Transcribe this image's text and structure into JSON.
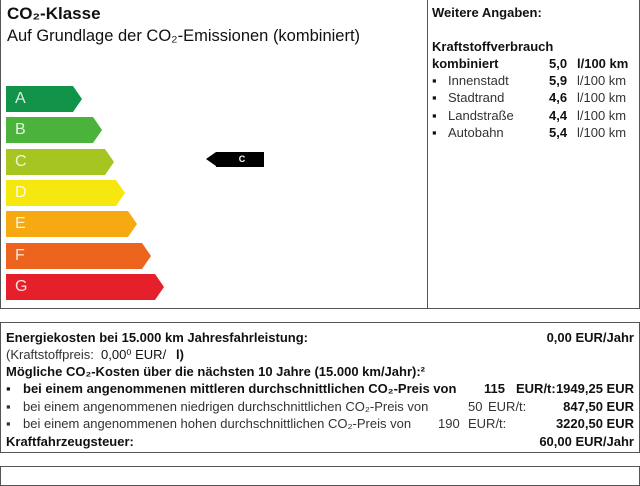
{
  "co2": {
    "title": "CO₂-Klasse",
    "subtitle": "Auf Grundlage der CO₂-Emissionen (kombiniert)",
    "classes": [
      {
        "label": "A",
        "color": "#12934a"
      },
      {
        "label": "B",
        "color": "#4bb23c"
      },
      {
        "label": "C",
        "color": "#a6c521"
      },
      {
        "label": "D",
        "color": "#f6e80f"
      },
      {
        "label": "E",
        "color": "#f6a911"
      },
      {
        "label": "F",
        "color": "#ec631d"
      },
      {
        "label": "G",
        "color": "#e5202a"
      }
    ],
    "current_class": "C"
  },
  "info": {
    "title": "Weitere Angaben:",
    "consumption_title": "Kraftstoffverbrauch",
    "combined": {
      "label": "kombiniert",
      "value": "5,0",
      "unit": "l/100 km"
    },
    "items": [
      {
        "label": "Innenstadt",
        "value": "5,9",
        "unit": "l/100 km"
      },
      {
        "label": "Stadtrand",
        "value": "4,6",
        "unit": "l/100 km"
      },
      {
        "label": "Landstraße",
        "value": "4,4",
        "unit": "l/100 km"
      },
      {
        "label": "Autobahn",
        "value": "5,4",
        "unit": "l/100 km"
      }
    ]
  },
  "costs": {
    "energy_label": "Energiekosten bei 15.000 km Jahresfahrleistung:",
    "energy_value": "0,00 EUR/Jahr",
    "fuel_price_label": "(Kraftstoffpreis:",
    "fuel_price_value": "0,00⁰ EUR/",
    "fuel_price_unit": "l)",
    "co2_costs_label": "Mögliche CO₂-Kosten über die nächsten 10 Jahre (15.000 km/Jahr):²",
    "scenarios": [
      {
        "label": "bei einem angenommenen mittleren durchschnittlichen CO₂-Preis von",
        "price": "115",
        "unit": "EUR/t:",
        "value": "1949,25 EUR"
      },
      {
        "label": "bei einem angenommenen niedrigen durchschnittlichen CO₂-Preis von",
        "price": "50",
        "unit": "EUR/t:",
        "value": "847,50 EUR"
      },
      {
        "label": "bei einem angenommenen hohen durchschnittlichen CO₂-Preis von",
        "price": "190",
        "unit": "EUR/t:",
        "value": "3220,50 EUR"
      }
    ],
    "tax_label": "Kraftfahrzeugsteuer:",
    "tax_value": "60,00 EUR/Jahr"
  }
}
